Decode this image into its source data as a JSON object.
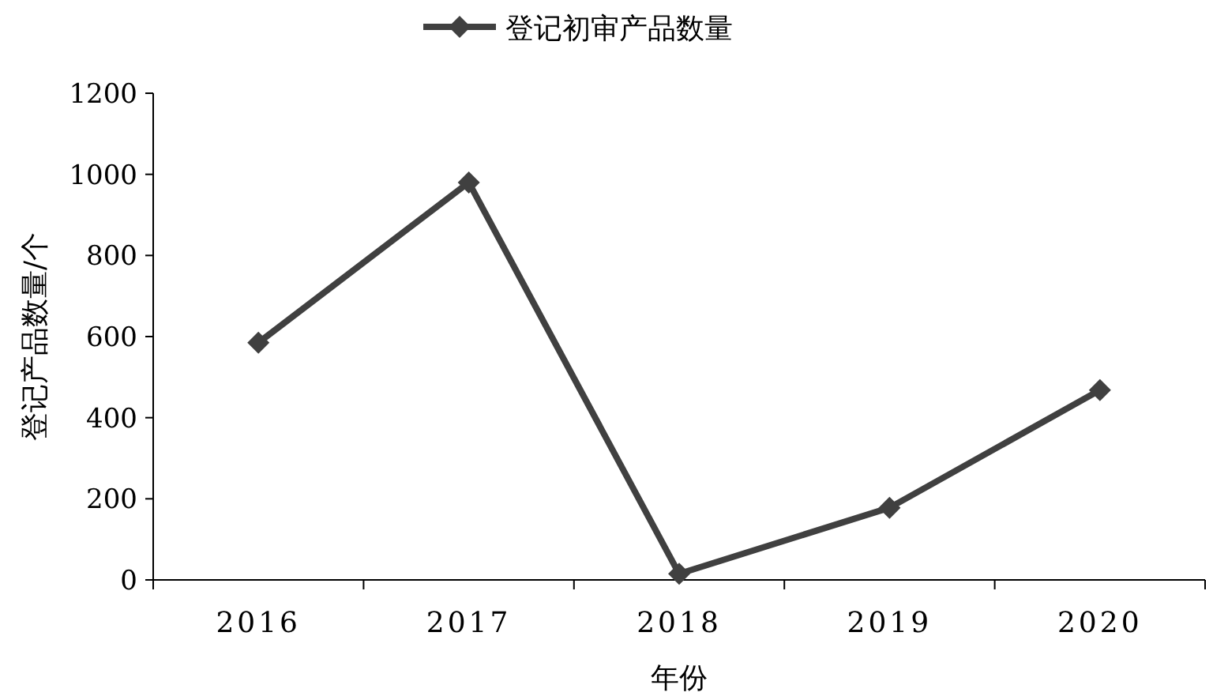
{
  "chart_data": {
    "type": "line",
    "xlabel": "年份",
    "ylabel": "登记产品数量/个",
    "categories": [
      "2016",
      "2017",
      "2018",
      "2019",
      "2020"
    ],
    "series": [
      {
        "name": "登记初审产品数量",
        "color": "#404040",
        "values": [
          585,
          980,
          15,
          178,
          468
        ]
      }
    ],
    "ylim": [
      0,
      1200
    ],
    "yticks": [
      0,
      200,
      400,
      600,
      800,
      1000,
      1200
    ],
    "grid": false,
    "legend": "top",
    "marker": "diamond",
    "line_style": "solid"
  }
}
